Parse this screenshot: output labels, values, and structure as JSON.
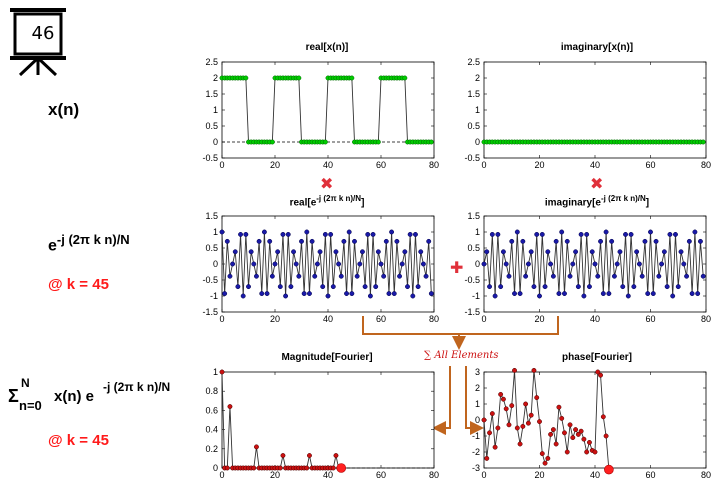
{
  "slide_number": "46",
  "row_labels": {
    "signal": "x(n)",
    "kernel_base": "e",
    "kernel_exp": "-j (2π k n)/N",
    "kernel_k": "@ k = 45",
    "sum_sigma": "Σ",
    "sum_upper": "N",
    "sum_lower": "n=0",
    "sum_body": "x(n) e",
    "sum_exp": "-j (2π k n)/N",
    "sum_k": "@ k = 45"
  },
  "titles": {
    "real_x": "real[x(n)]",
    "imag_x": "imaginary[x(n)]",
    "real_e_prefix": "real[e",
    "real_e_exp": "-j (2π k n)/N",
    "real_e_suffix": "]",
    "imag_e_prefix": "imaginary[e",
    "imag_e_exp": "-j (2π k n)/N",
    "imag_e_suffix": "]",
    "magnitude": "Magnitude[Fourier]",
    "phase": "phase[Fourier]"
  },
  "operators": {
    "multiply": "✖",
    "plus": "✚",
    "sum_all": "∑ All Elements"
  },
  "colors": {
    "green_marker": "#00cc00",
    "blue_marker": "#1a1aa8",
    "red_marker": "#cc1111",
    "highlight": "#ff2020",
    "arrow": "#c0651e",
    "red_text": "#ff1a1a"
  },
  "chart_data": [
    {
      "type": "line",
      "name": "real_x",
      "x_range": [
        0,
        79
      ],
      "signal": "square wave, period 20, high 2 for n mod 20 < 10, low 0",
      "high_value": 2,
      "low_value": 0,
      "xlim": [
        0,
        80
      ],
      "ylim": [
        -0.5,
        2.5
      ],
      "xticks": [
        0,
        20,
        40,
        60,
        80
      ],
      "yticks": [
        -0.5,
        0,
        0.5,
        1,
        1.5,
        2,
        2.5
      ],
      "grid": false,
      "zero_line": "dashed",
      "marker": "green"
    },
    {
      "type": "line",
      "name": "imag_x",
      "x_range": [
        0,
        79
      ],
      "values_constant": 0,
      "xlim": [
        0,
        80
      ],
      "ylim": [
        -0.5,
        2.5
      ],
      "xticks": [
        0,
        20,
        40,
        60,
        80
      ],
      "yticks": [
        -0.5,
        0,
        0.5,
        1,
        1.5,
        2,
        2.5
      ],
      "grid": false,
      "marker": "green"
    },
    {
      "type": "line",
      "name": "real_kernel",
      "formula": "cos(2π·45·n/80)",
      "k": 45,
      "N": 80,
      "xlim": [
        0,
        80
      ],
      "ylim": [
        -1.5,
        1.5
      ],
      "xticks": [
        0,
        20,
        40,
        60,
        80
      ],
      "yticks": [
        -1.5,
        -1,
        -0.5,
        0,
        0.5,
        1,
        1.5
      ],
      "grid": false,
      "marker": "blue"
    },
    {
      "type": "line",
      "name": "imag_kernel",
      "formula": "-sin(2π·45·n/80)",
      "k": 45,
      "N": 80,
      "xlim": [
        0,
        80
      ],
      "ylim": [
        -1.5,
        1.5
      ],
      "xticks": [
        0,
        20,
        40,
        60,
        80
      ],
      "yticks": [
        -1.5,
        -1,
        -0.5,
        0,
        0.5,
        1,
        1.5
      ],
      "grid": false,
      "marker": "blue"
    },
    {
      "type": "line",
      "name": "magnitude",
      "x": [
        0,
        1,
        2,
        3,
        4,
        5,
        6,
        7,
        8,
        9,
        10,
        11,
        12,
        13,
        14,
        15,
        16,
        17,
        18,
        19,
        20,
        21,
        22,
        23,
        24,
        25,
        26,
        27,
        28,
        29,
        30,
        31,
        32,
        33,
        34,
        35,
        36,
        37,
        38,
        39,
        40,
        41,
        42,
        43,
        44,
        45
      ],
      "values": [
        1.0,
        0,
        0,
        0.64,
        0,
        0,
        0,
        0,
        0,
        0,
        0,
        0,
        0,
        0.22,
        0,
        0,
        0,
        0,
        0,
        0,
        0,
        0,
        0,
        0.13,
        0,
        0,
        0,
        0,
        0,
        0,
        0,
        0,
        0,
        0.13,
        0,
        0,
        0,
        0,
        0,
        0,
        0,
        0,
        0,
        0.13,
        0,
        0
      ],
      "highlight_point": [
        45,
        0
      ],
      "xlim": [
        0,
        80
      ],
      "ylim": [
        0,
        1
      ],
      "xticks": [
        0,
        20,
        40,
        60,
        80
      ],
      "yticks": [
        0,
        0.2,
        0.4,
        0.6,
        0.8,
        1
      ],
      "grid": false,
      "zero_line": "dashed",
      "marker": "red"
    },
    {
      "type": "line",
      "name": "phase",
      "x": [
        0,
        1,
        2,
        3,
        4,
        5,
        6,
        7,
        8,
        9,
        10,
        11,
        12,
        13,
        14,
        15,
        16,
        17,
        18,
        19,
        20,
        21,
        22,
        23,
        24,
        25,
        26,
        27,
        28,
        29,
        30,
        31,
        32,
        33,
        34,
        35,
        36,
        37,
        38,
        39,
        40,
        41,
        42,
        43,
        44,
        45
      ],
      "values": [
        0,
        -2.4,
        -0.8,
        0.4,
        -1.7,
        -0.5,
        1.6,
        1.3,
        0.7,
        -0.3,
        0.9,
        3.1,
        -0.5,
        -1.5,
        -0.4,
        1.0,
        -0.2,
        0.3,
        3.1,
        1.4,
        -0.1,
        -2.1,
        -2.7,
        -2.4,
        -0.9,
        -0.6,
        -1.5,
        0.8,
        0.1,
        -0.8,
        -2.0,
        -0.3,
        -1.1,
        -0.6,
        -0.9,
        -0.7,
        -1.2,
        -2.0,
        -1.4,
        -1.9,
        -2.0,
        3.0,
        2.8,
        0.2,
        -1.0,
        -3.1
      ],
      "highlight_point": [
        45,
        -3.1
      ],
      "xlim": [
        0,
        80
      ],
      "ylim": [
        -3,
        3
      ],
      "xticks": [
        0,
        20,
        40,
        60,
        80
      ],
      "yticks": [
        -3,
        -2,
        -1,
        0,
        1,
        2,
        3
      ],
      "grid": false,
      "marker": "red"
    }
  ]
}
